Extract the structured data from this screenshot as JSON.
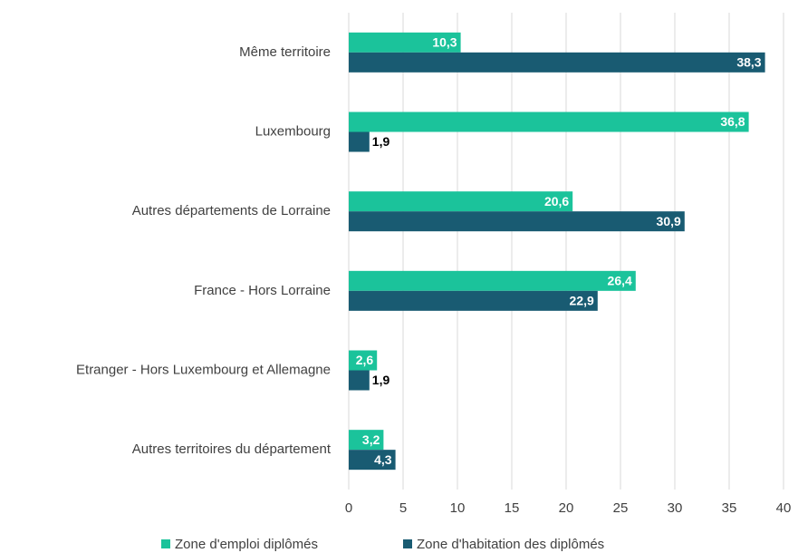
{
  "chart_data": {
    "type": "hbar",
    "categories": [
      "Même territoire",
      "Luxembourg",
      "Autres départements de Lorraine",
      "France - Hors Lorraine",
      "Etranger - Hors Luxembourg et Allemagne",
      "Autres territoires du département"
    ],
    "series": [
      {
        "name": "Zone d'emploi diplômés",
        "color": "#1bc39b",
        "values": [
          10.3,
          36.8,
          20.6,
          26.4,
          2.6,
          3.2
        ],
        "value_labels": [
          "10,3",
          "36,8",
          "20,6",
          "26,4",
          "2,6",
          "3,2"
        ]
      },
      {
        "name": "Zone d'habitation des diplômés",
        "color": "#195b72",
        "values": [
          38.3,
          1.9,
          30.9,
          22.9,
          1.9,
          4.3
        ],
        "value_labels": [
          "38,3",
          "1,9",
          "30,9",
          "22,9",
          "1,9",
          "4,3"
        ]
      }
    ],
    "xlim": [
      0,
      40
    ],
    "xticks": [
      0,
      5,
      10,
      15,
      20,
      25,
      30,
      35,
      40
    ],
    "grid": true
  }
}
